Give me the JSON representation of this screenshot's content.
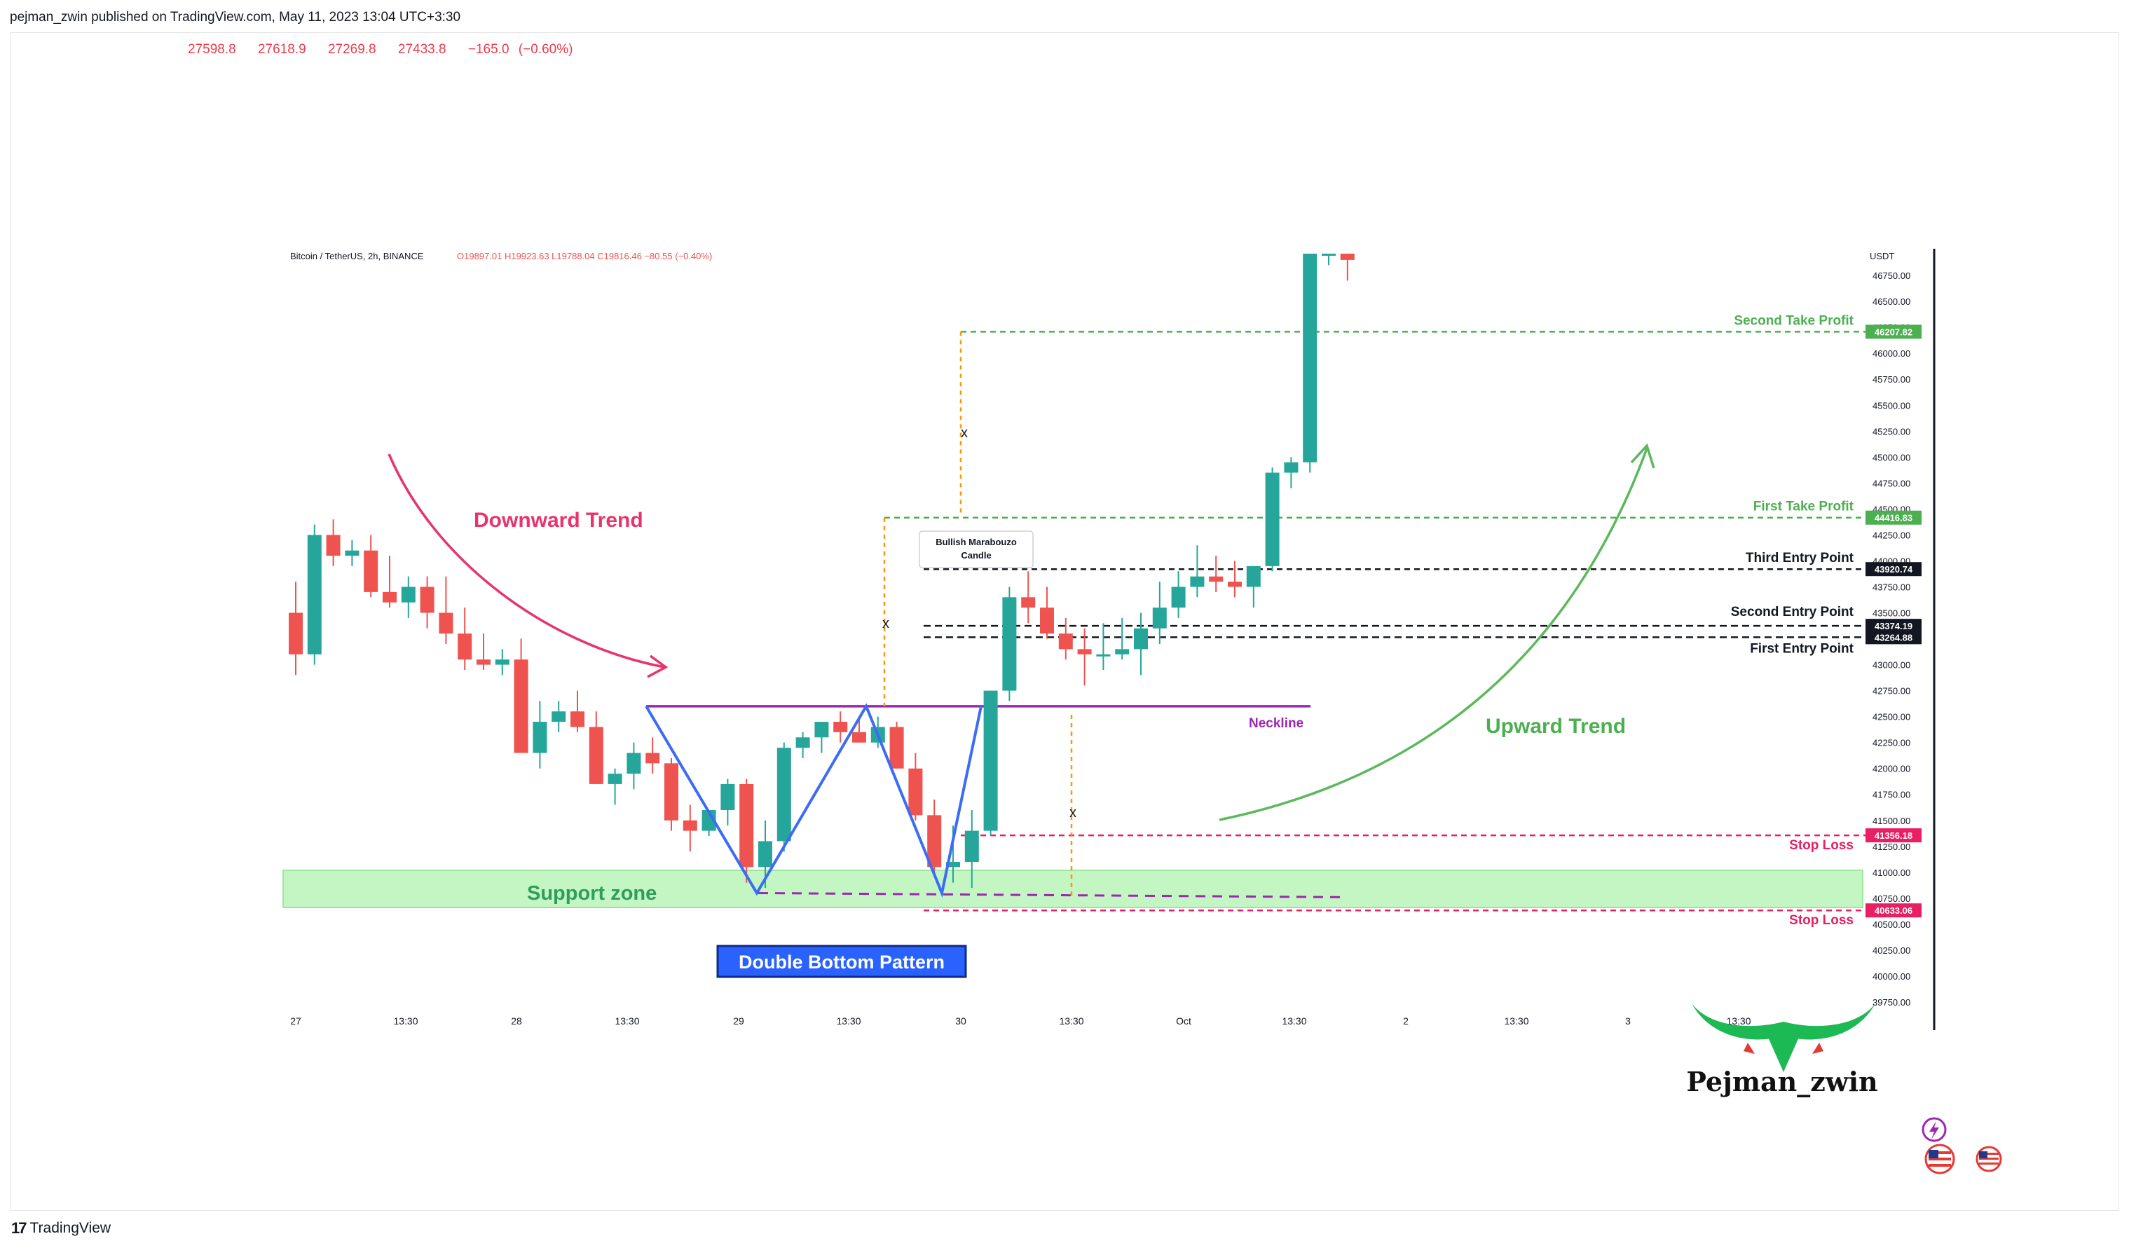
{
  "header": {
    "published_text": "pejman_zwin published on TradingView.com, May 11, 2023 13:04 UTC+3:30",
    "ohlc": [
      "27598.8",
      "27618.9",
      "27269.8",
      "27433.8",
      "−165.0 (−0.60%)"
    ]
  },
  "footer": {
    "brand": "TradingView",
    "logo_icon": "tradingview-logo-icon"
  },
  "chart_data": {
    "type": "candlestick",
    "title": "Bitcoin / TetherUS, 2h, BINANCE",
    "legend_ohlc": "O19897.01 H19923.63 L19788.04 C19816.46 −80.55 (−0.40%)",
    "currency_label": "USDT",
    "x_ticks": [
      "27",
      "13:30",
      "28",
      "13:30",
      "29",
      "13:30",
      "30",
      "13:30",
      "Oct",
      "13:30",
      "2",
      "13:30",
      "3",
      "13:30"
    ],
    "y_ticks": [
      "46750.00",
      "46500.00",
      "46250.00",
      "46000.00",
      "45750.00",
      "45500.00",
      "45250.00",
      "45000.00",
      "44750.00",
      "44500.00",
      "44250.00",
      "44000.00",
      "43750.00",
      "43500.00",
      "43250.00",
      "43000.00",
      "42750.00",
      "42500.00",
      "42250.00",
      "42000.00",
      "41750.00",
      "41500.00",
      "41250.00",
      "41000.00",
      "40750.00",
      "40500.00",
      "40250.00",
      "40000.00",
      "39750.00"
    ],
    "ylim": [
      39750,
      46960
    ],
    "up_color": "#26a69a",
    "down_color": "#ef5350",
    "candles": [
      [
        43500,
        43800,
        42900,
        43100
      ],
      [
        43100,
        44350,
        43000,
        44250
      ],
      [
        44250,
        44400,
        43950,
        44050
      ],
      [
        44050,
        44200,
        43950,
        44100
      ],
      [
        44100,
        44250,
        43650,
        43700
      ],
      [
        43700,
        44050,
        43550,
        43600
      ],
      [
        43600,
        43850,
        43450,
        43750
      ],
      [
        43750,
        43850,
        43350,
        43500
      ],
      [
        43500,
        43850,
        43200,
        43300
      ],
      [
        43300,
        43550,
        42950,
        43050
      ],
      [
        43050,
        43300,
        42950,
        43000
      ],
      [
        43000,
        43150,
        42900,
        43050
      ],
      [
        43050,
        43250,
        42200,
        42150
      ],
      [
        42150,
        42650,
        42000,
        42450
      ],
      [
        42450,
        42650,
        42350,
        42550
      ],
      [
        42550,
        42750,
        42350,
        42400
      ],
      [
        42400,
        42550,
        41850,
        41850
      ],
      [
        41850,
        42000,
        41650,
        41950
      ],
      [
        41950,
        42250,
        41800,
        42150
      ],
      [
        42150,
        42300,
        41950,
        42050
      ],
      [
        42050,
        42100,
        41400,
        41500
      ],
      [
        41500,
        41650,
        41200,
        41400
      ],
      [
        41400,
        41600,
        41350,
        41600
      ],
      [
        41600,
        41900,
        41450,
        41850
      ],
      [
        41850,
        41900,
        40900,
        41050
      ],
      [
        41050,
        41500,
        40850,
        41300
      ],
      [
        41300,
        42250,
        41200,
        42200
      ],
      [
        42200,
        42350,
        42100,
        42300
      ],
      [
        42300,
        42450,
        42150,
        42450
      ],
      [
        42450,
        42550,
        42250,
        42350
      ],
      [
        42350,
        42500,
        42250,
        42250
      ],
      [
        42250,
        42500,
        42200,
        42400
      ],
      [
        42400,
        42450,
        42000,
        42000
      ],
      [
        42000,
        42150,
        41500,
        41550
      ],
      [
        41550,
        41700,
        41000,
        41050
      ],
      [
        41050,
        41450,
        40900,
        41100
      ],
      [
        41100,
        41600,
        40850,
        41400
      ],
      [
        41400,
        42750,
        41350,
        42750
      ],
      [
        42750,
        43750,
        42650,
        43650
      ],
      [
        43650,
        43900,
        43400,
        43550
      ],
      [
        43550,
        43750,
        43250,
        43300
      ],
      [
        43300,
        43450,
        43050,
        43150
      ],
      [
        43150,
        43350,
        42800,
        43100
      ],
      [
        43100,
        43400,
        42950,
        43100
      ],
      [
        43100,
        43450,
        43050,
        43150
      ],
      [
        43150,
        43500,
        42900,
        43350
      ],
      [
        43350,
        43800,
        43200,
        43550
      ],
      [
        43550,
        43900,
        43450,
        43750
      ],
      [
        43750,
        44150,
        43650,
        43850
      ],
      [
        43850,
        44050,
        43700,
        43800
      ],
      [
        43800,
        44000,
        43650,
        43750
      ],
      [
        43750,
        43950,
        43550,
        43950
      ],
      [
        43950,
        44900,
        43900,
        44850
      ],
      [
        44850,
        45000,
        44700,
        44950
      ],
      [
        44950,
        46960,
        44850,
        46960
      ],
      [
        46960,
        46960,
        46850,
        46960
      ],
      [
        46960,
        46960,
        46700,
        46900
      ]
    ],
    "levels": {
      "second_take_profit": {
        "label": "Second Take Profit",
        "value": 46207.82,
        "price_label": "46207.82",
        "color": "#4caf50"
      },
      "first_take_profit": {
        "label": "First Take Profit",
        "value": 44416.83,
        "price_label": "44416.83",
        "color": "#4caf50"
      },
      "third_entry": {
        "label": "Third Entry Point",
        "value": 43920.74,
        "price_label": "43920.74",
        "color": "#131722"
      },
      "second_entry": {
        "label": "Second Entry Point",
        "value": 43374.19,
        "price_label": "43374.19",
        "color": "#131722"
      },
      "first_entry": {
        "label": "First Entry Point",
        "value": 43264.88,
        "price_label": "43264.88",
        "color": "#131722"
      },
      "neckline": {
        "label": "Neckline",
        "value": 42600,
        "color": "#9c27b0"
      },
      "stop_loss_1": {
        "label": "Stop Loss",
        "value": 41356.18,
        "price_label": "41356.18",
        "color": "#e91e63"
      },
      "stop_loss_2": {
        "label": "Stop Loss",
        "value": 40633.06,
        "price_label": "40633.06",
        "color": "#e91e63"
      }
    },
    "support_zone": {
      "label": "Support zone",
      "low": 40660,
      "high": 41020
    },
    "annotations": {
      "downward_trend": "Downward Trend",
      "upward_trend": "Upward Trend",
      "pattern": "Double Bottom Pattern",
      "candle_note_line1": "Bullish Marabouzo",
      "candle_note_line2": "Candle",
      "x_mark": "x"
    },
    "watermark": {
      "name": "Pejman_zwin",
      "icon": "bull-horns-logo-icon"
    },
    "corner_icons": [
      "lightning-icon",
      "us-flag-icon",
      "us-flag-icon"
    ]
  }
}
